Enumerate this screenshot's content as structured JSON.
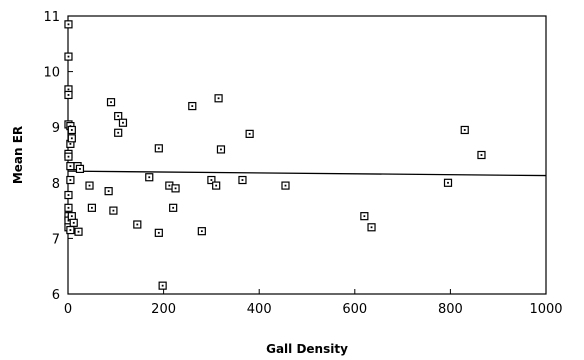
{
  "chart_data": {
    "type": "scatter",
    "xlabel": "Gall Density",
    "ylabel": "Mean ER",
    "xlim": [
      0,
      1000
    ],
    "ylim": [
      6,
      11
    ],
    "xticks": [
      0,
      200,
      400,
      600,
      800,
      1000
    ],
    "yticks": [
      6,
      7,
      8,
      9,
      10,
      11
    ],
    "grid": false,
    "legend": "none",
    "marker": "open-square",
    "trend_line": {
      "intercept": 8.21,
      "slope": -8e-05
    },
    "series": [
      {
        "points": [
          [
            1,
            10.85
          ],
          [
            1,
            10.27
          ],
          [
            1,
            9.68
          ],
          [
            1,
            9.58
          ],
          [
            1,
            9.05
          ],
          [
            1,
            8.52
          ],
          [
            1,
            8.47
          ],
          [
            1,
            7.78
          ],
          [
            1,
            7.55
          ],
          [
            1,
            7.4
          ],
          [
            1,
            7.32
          ],
          [
            1,
            7.2
          ],
          [
            5,
            9.02
          ],
          [
            5,
            8.7
          ],
          [
            5,
            8.3
          ],
          [
            5,
            8.05
          ],
          [
            5,
            7.15
          ],
          [
            8,
            8.95
          ],
          [
            8,
            8.8
          ],
          [
            8,
            7.4
          ],
          [
            12,
            7.28
          ],
          [
            20,
            8.3
          ],
          [
            22,
            7.12
          ],
          [
            25,
            8.25
          ],
          [
            45,
            7.95
          ],
          [
            50,
            7.55
          ],
          [
            85,
            7.85
          ],
          [
            90,
            9.45
          ],
          [
            95,
            7.5
          ],
          [
            105,
            9.2
          ],
          [
            105,
            8.9
          ],
          [
            115,
            9.08
          ],
          [
            145,
            7.25
          ],
          [
            170,
            8.1
          ],
          [
            190,
            8.62
          ],
          [
            190,
            7.1
          ],
          [
            198,
            6.15
          ],
          [
            212,
            7.95
          ],
          [
            220,
            7.55
          ],
          [
            225,
            7.9
          ],
          [
            260,
            9.38
          ],
          [
            280,
            7.13
          ],
          [
            300,
            8.05
          ],
          [
            310,
            7.95
          ],
          [
            315,
            9.52
          ],
          [
            320,
            8.6
          ],
          [
            365,
            8.05
          ],
          [
            380,
            8.88
          ],
          [
            455,
            7.95
          ],
          [
            620,
            7.4
          ],
          [
            635,
            7.2
          ],
          [
            795,
            8.0
          ],
          [
            830,
            8.95
          ],
          [
            865,
            8.5
          ]
        ]
      }
    ]
  }
}
